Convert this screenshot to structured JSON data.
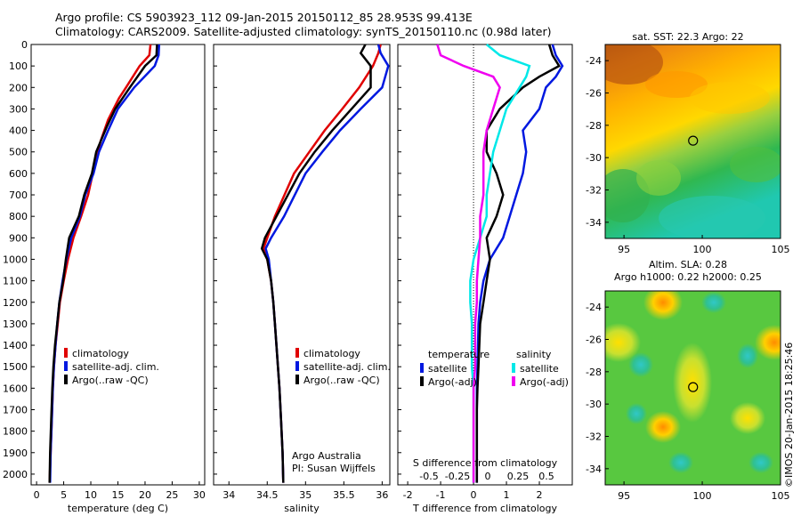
{
  "header": {
    "line1": "Argo profile: CS 5903923_112 09-Jan-2015 20150112_85 28.953S 99.413E",
    "line2": "Climatology: CARS2009. Satellite-adjusted climatology: synTS_20150110.nc (0.98d later)"
  },
  "credit": "©IMOS 20-Jan-2015 18:25:46",
  "colors": {
    "climatology": "#e00000",
    "satellite": "#0018e0",
    "argo": "#000000",
    "satellite_s": "#00e8e8",
    "argo_s": "#f000f0"
  },
  "chart_data": [
    {
      "type": "line",
      "xlabel": "temperature (deg C)",
      "ylabel": "",
      "xlim": [
        -1,
        31
      ],
      "ylim": [
        2050,
        0
      ],
      "xticks": [
        0,
        5,
        10,
        15,
        20,
        25,
        30
      ],
      "yticks": [
        0,
        100,
        200,
        300,
        400,
        500,
        600,
        700,
        800,
        900,
        1000,
        1100,
        1200,
        1300,
        1400,
        1500,
        1600,
        1700,
        1800,
        1900,
        2000
      ],
      "legend": [
        "climatology",
        "satellite-adj. clim.",
        "Argo(..raw -QC)"
      ],
      "legend_position": "bottom-right",
      "series": [
        {
          "name": "climatology",
          "color": "#e00000",
          "x": [
            21.0,
            20.8,
            19.0,
            16.5,
            15.2,
            13.2,
            11.8,
            10.8,
            9.5,
            8.2,
            6.8,
            5.8,
            5.0,
            4.3,
            3.9,
            3.5,
            3.2,
            3.0,
            2.8,
            2.6,
            2.4
          ],
          "y": [
            0,
            50,
            100,
            200,
            250,
            350,
            450,
            550,
            700,
            800,
            900,
            1000,
            1100,
            1200,
            1300,
            1400,
            1500,
            1600,
            1750,
            1900,
            2040
          ]
        },
        {
          "name": "satellite-adj. clim.",
          "color": "#0018e0",
          "x": [
            22.6,
            22.5,
            21.8,
            18.0,
            15.0,
            13.2,
            11.5,
            10.5,
            9.0,
            8.0,
            6.4,
            5.5,
            4.8,
            4.2,
            3.8,
            3.5,
            3.2,
            3.0,
            2.8,
            2.6,
            2.5
          ],
          "y": [
            0,
            50,
            100,
            200,
            300,
            400,
            500,
            600,
            700,
            800,
            900,
            1000,
            1100,
            1200,
            1300,
            1400,
            1500,
            1600,
            1750,
            1900,
            2040
          ]
        },
        {
          "name": "Argo(..raw -QC)",
          "color": "#000000",
          "x": [
            22.2,
            22.1,
            20.0,
            17.2,
            14.5,
            13.0,
            11.0,
            10.2,
            8.8,
            7.8,
            6.0,
            5.4,
            4.9,
            4.2,
            3.8,
            3.4,
            3.1,
            2.9,
            2.7,
            2.5,
            2.4
          ],
          "y": [
            0,
            50,
            100,
            200,
            300,
            380,
            500,
            600,
            700,
            800,
            900,
            1000,
            1100,
            1200,
            1300,
            1400,
            1500,
            1600,
            1750,
            1900,
            2040
          ]
        }
      ]
    },
    {
      "type": "line",
      "xlabel": "salinity",
      "ylabel": "",
      "xlim": [
        33.8,
        36.1
      ],
      "ylim": [
        2050,
        0
      ],
      "xticks": [
        34,
        34.5,
        35,
        35.5,
        36
      ],
      "legend": [
        "climatology",
        "satellite-adj. clim.",
        "Argo(..raw -QC)"
      ],
      "legend_position": "bottom-right",
      "annotations": [
        "Argo Australia",
        "PI: Susan Wijffels"
      ],
      "series": [
        {
          "name": "climatology",
          "color": "#e00000",
          "x": [
            35.98,
            35.95,
            35.88,
            35.7,
            35.48,
            35.25,
            35.05,
            34.85,
            34.6,
            34.5,
            34.45,
            34.5,
            34.55,
            34.58,
            34.6,
            34.62,
            34.64,
            34.66,
            34.68,
            34.7,
            34.71
          ],
          "y": [
            0,
            40,
            100,
            200,
            300,
            400,
            500,
            600,
            800,
            900,
            950,
            1000,
            1100,
            1200,
            1300,
            1400,
            1500,
            1600,
            1750,
            1900,
            2040
          ]
        },
        {
          "name": "satellite-adj. clim.",
          "color": "#0018e0",
          "x": [
            35.95,
            35.98,
            36.08,
            36.0,
            35.72,
            35.45,
            35.22,
            35.0,
            34.72,
            34.55,
            34.48,
            34.52,
            34.55,
            34.58,
            34.6,
            34.62,
            34.64,
            34.66,
            34.68,
            34.7,
            34.71
          ],
          "y": [
            0,
            40,
            100,
            200,
            300,
            400,
            500,
            600,
            800,
            900,
            950,
            1000,
            1100,
            1200,
            1300,
            1400,
            1500,
            1600,
            1750,
            1900,
            2040
          ]
        },
        {
          "name": "Argo(..raw -QC)",
          "color": "#000000",
          "x": [
            35.78,
            35.72,
            35.85,
            35.85,
            35.6,
            35.35,
            35.12,
            34.92,
            34.62,
            34.47,
            34.43,
            34.5,
            34.55,
            34.58,
            34.6,
            34.62,
            34.64,
            34.66,
            34.68,
            34.7,
            34.71
          ],
          "y": [
            0,
            40,
            100,
            200,
            300,
            400,
            500,
            600,
            800,
            900,
            950,
            1000,
            1100,
            1200,
            1300,
            1400,
            1500,
            1600,
            1750,
            1900,
            2040
          ]
        }
      ]
    },
    {
      "type": "line",
      "xlabel": "T difference from climatology",
      "xlabel_top": "S difference from climatology",
      "xlim": [
        -2.3,
        3.0
      ],
      "ylim": [
        2050,
        0
      ],
      "xticks": [
        -2,
        -1,
        0,
        1,
        2
      ],
      "xticks_s": [
        "-0.5",
        "-0.25",
        "0",
        "0.25",
        "0.5"
      ],
      "legend_headers": [
        "temperature",
        "salinity"
      ],
      "legend": [
        "satellite",
        "Argo(-adj)",
        "satellite",
        "Argo(-adj)"
      ],
      "legend_position": "bottom-right",
      "series": [
        {
          "name": "satellite",
          "color": "#0018e0",
          "x": [
            2.4,
            2.5,
            2.7,
            2.5,
            2.2,
            2.0,
            1.5,
            1.6,
            1.5,
            1.3,
            1.1,
            0.9,
            0.5,
            0.3,
            0.2,
            0.15,
            0.12,
            0.1,
            0.1,
            0.1,
            0.1
          ],
          "y": [
            0,
            50,
            100,
            150,
            200,
            300,
            400,
            500,
            600,
            700,
            800,
            900,
            1000,
            1100,
            1200,
            1300,
            1500,
            1600,
            1700,
            1900,
            2040
          ]
        },
        {
          "name": "Argo(-adj)",
          "color": "#000000",
          "x": [
            2.3,
            2.4,
            2.6,
            2.0,
            1.5,
            0.8,
            0.4,
            0.4,
            0.7,
            0.9,
            0.7,
            0.4,
            0.5,
            0.4,
            0.3,
            0.2,
            0.15,
            0.12,
            0.1,
            0.1,
            0.1
          ],
          "y": [
            0,
            50,
            100,
            150,
            200,
            300,
            400,
            500,
            600,
            700,
            800,
            900,
            1000,
            1100,
            1200,
            1300,
            1500,
            1600,
            1700,
            1900,
            2040
          ]
        },
        {
          "name": "satellite",
          "color": "#00e8e8",
          "x": [
            0.4,
            0.8,
            1.7,
            1.6,
            1.4,
            1.0,
            0.8,
            0.6,
            0.5,
            0.4,
            0.4,
            0.2,
            0.0,
            -0.1,
            -0.1,
            -0.05,
            -0.05,
            0.0,
            0.0,
            0.0,
            0.0
          ],
          "y": [
            0,
            50,
            100,
            150,
            200,
            300,
            400,
            500,
            600,
            700,
            800,
            900,
            1000,
            1100,
            1200,
            1300,
            1500,
            1600,
            1700,
            1900,
            2040
          ]
        },
        {
          "name": "Argo(-adj)",
          "color": "#f000f0",
          "x": [
            -1.1,
            -1.0,
            -0.3,
            0.6,
            0.8,
            0.6,
            0.4,
            0.3,
            0.3,
            0.3,
            0.2,
            0.2,
            0.15,
            0.1,
            0.1,
            0.05,
            0.05,
            0.0,
            0.0,
            0.0,
            0.0
          ],
          "y": [
            0,
            50,
            100,
            150,
            200,
            300,
            400,
            500,
            600,
            700,
            800,
            900,
            1000,
            1100,
            1200,
            1300,
            1500,
            1600,
            1700,
            1900,
            2040
          ]
        }
      ]
    },
    {
      "type": "heatmap",
      "title": "sat. SST: 22.3  Argo: 22",
      "xticks": [
        95,
        100,
        105
      ],
      "yticks": [
        -24,
        -26,
        -28,
        -30,
        -32,
        -34
      ],
      "xlim": [
        93.8,
        105
      ],
      "ylim": [
        -35,
        -23
      ],
      "marker": {
        "lon": 99.413,
        "lat": -28.953
      }
    },
    {
      "type": "heatmap",
      "title": "Altim. SLA: 0.28",
      "subtitle": "Argo h1000: 0.22  h2000: 0.25",
      "xticks": [
        95,
        100,
        105
      ],
      "yticks": [
        -24,
        -26,
        -28,
        -30,
        -32,
        -34
      ],
      "xlim": [
        93.8,
        105
      ],
      "ylim": [
        -35,
        -23
      ],
      "marker": {
        "lon": 99.413,
        "lat": -28.953
      }
    }
  ]
}
